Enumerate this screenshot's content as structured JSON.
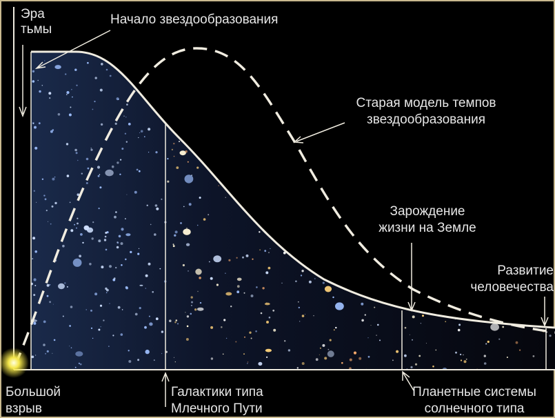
{
  "labels": {
    "dark_era": {
      "lines": [
        "Эра",
        "тьмы"
      ]
    },
    "star_formation_start": {
      "lines": [
        "Начало звездообразования"
      ]
    },
    "old_model": {
      "lines": [
        "Старая модель темпов",
        "звездообразования"
      ]
    },
    "life_origin": {
      "lines": [
        "Зарождение",
        "жизни на Земле"
      ]
    },
    "humanity": {
      "lines": [
        "Развитие",
        "человечества"
      ]
    },
    "big_bang": {
      "lines": [
        "Большой",
        "взрыв"
      ]
    },
    "milky_way": {
      "lines": [
        "Галактики типа",
        "Млечного Пути"
      ]
    },
    "planetary_systems": {
      "lines": [
        "Планетные системы",
        "солнечного типа"
      ]
    }
  }
}
